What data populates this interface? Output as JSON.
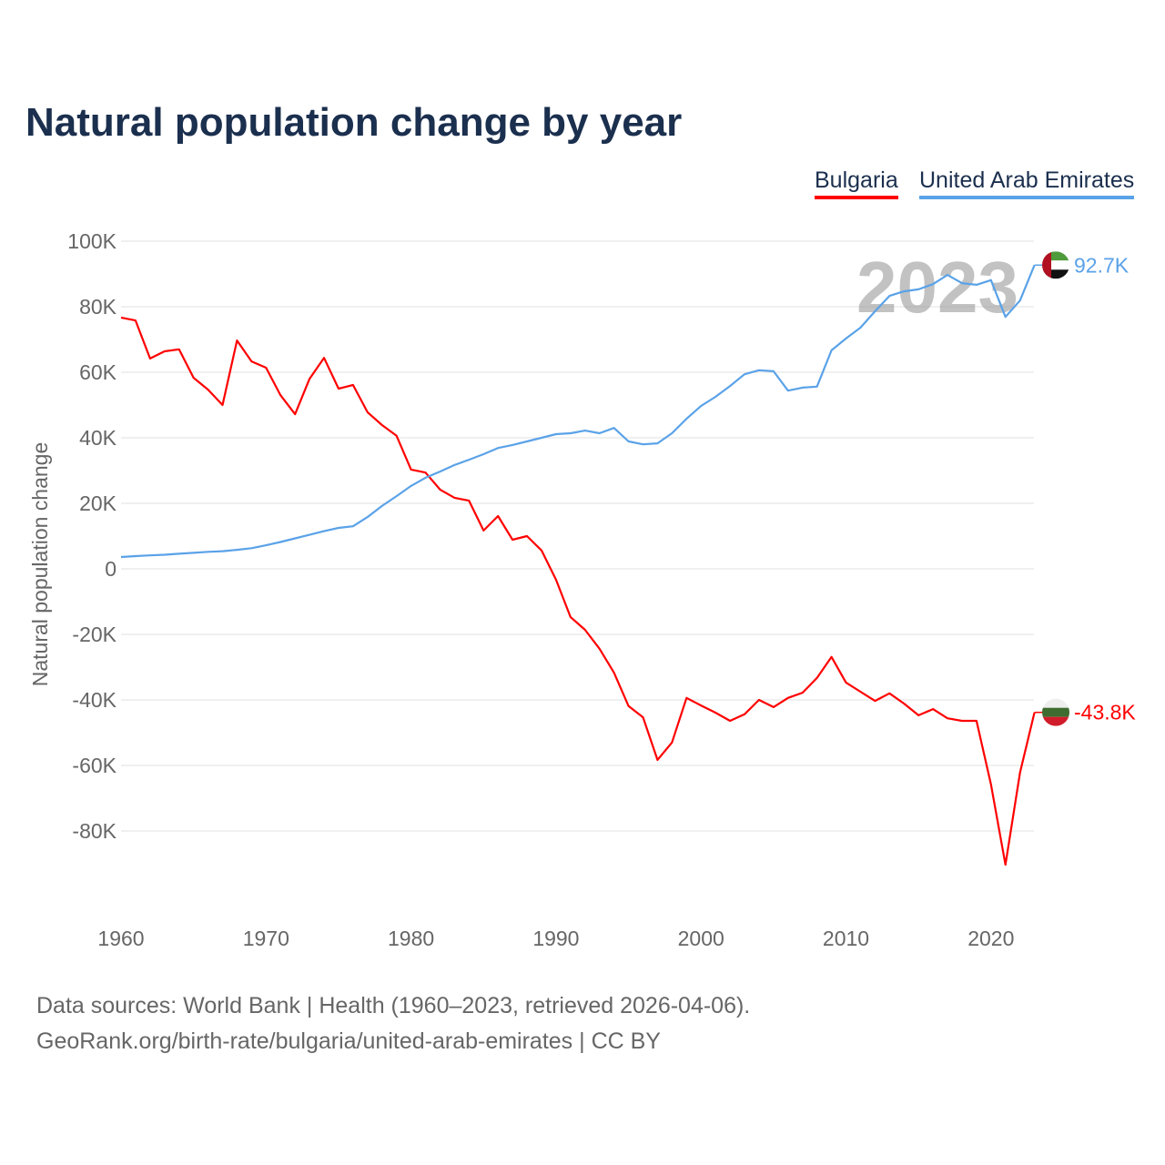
{
  "chart_data": {
    "type": "line",
    "title": "Natural population change by year",
    "xlabel": "",
    "ylabel": "Natural population change",
    "xlim": [
      1960,
      2023
    ],
    "ylim": [
      -100000,
      100000
    ],
    "x_ticks": [
      1960,
      1970,
      1980,
      1990,
      2000,
      2010,
      2020
    ],
    "x_tick_labels": [
      "1960",
      "1970",
      "1980",
      "1990",
      "2000",
      "2010",
      "2020"
    ],
    "y_ticks": [
      100000,
      80000,
      60000,
      40000,
      20000,
      0,
      -20000,
      -40000,
      -60000,
      -80000
    ],
    "y_tick_labels": [
      "100K",
      "80K",
      "60K",
      "40K",
      "20K",
      "0",
      "-20K",
      "-40K",
      "-60K",
      "-80K"
    ],
    "grid": true,
    "legend_position": "top-right",
    "current_year_label": "2023",
    "x": [
      1960,
      1961,
      1962,
      1963,
      1964,
      1965,
      1966,
      1967,
      1968,
      1969,
      1970,
      1971,
      1972,
      1973,
      1974,
      1975,
      1976,
      1977,
      1978,
      1979,
      1980,
      1981,
      1982,
      1983,
      1984,
      1985,
      1986,
      1987,
      1988,
      1989,
      1990,
      1991,
      1992,
      1993,
      1994,
      1995,
      1996,
      1997,
      1998,
      1999,
      2000,
      2001,
      2002,
      2003,
      2004,
      2005,
      2006,
      2007,
      2008,
      2009,
      2010,
      2011,
      2012,
      2013,
      2014,
      2015,
      2016,
      2017,
      2018,
      2019,
      2020,
      2021,
      2022,
      2023
    ],
    "series": [
      {
        "name": "Bulgaria",
        "color": "#ff0000",
        "end_label": "-43.8K",
        "values": [
          76700,
          75800,
          64200,
          66400,
          67000,
          58300,
          54700,
          50000,
          69700,
          63300,
          61400,
          53000,
          47200,
          58000,
          64400,
          55000,
          56100,
          47800,
          43900,
          40600,
          30300,
          29400,
          24200,
          21700,
          20800,
          11700,
          16100,
          8900,
          10000,
          5600,
          -3300,
          -14700,
          -18600,
          -24400,
          -31700,
          -41900,
          -45300,
          -58300,
          -53000,
          -39400,
          -41700,
          -43900,
          -46400,
          -44400,
          -40000,
          -42200,
          -39400,
          -37800,
          -33300,
          -26900,
          -34700,
          -37500,
          -40300,
          -38000,
          -41100,
          -44700,
          -42800,
          -45600,
          -46400,
          -46400,
          -65800,
          -90300,
          -62200,
          -43800
        ]
      },
      {
        "name": "United Arab Emirates",
        "color": "#5aa2e8",
        "end_label": "92.7K",
        "values": [
          3600,
          3900,
          4100,
          4300,
          4600,
          4900,
          5200,
          5400,
          5800,
          6300,
          7200,
          8200,
          9300,
          10400,
          11500,
          12500,
          13000,
          15800,
          19200,
          22200,
          25300,
          27800,
          29700,
          31700,
          33300,
          35000,
          36900,
          37800,
          38900,
          40000,
          41100,
          41400,
          42200,
          41400,
          43000,
          38900,
          38000,
          38300,
          41400,
          45800,
          49700,
          52500,
          55800,
          59400,
          60600,
          60300,
          54400,
          55300,
          55600,
          66700,
          70300,
          73600,
          78600,
          83300,
          84700,
          85300,
          86900,
          89700,
          87200,
          86700,
          88100,
          76900,
          81900,
          92700
        ]
      }
    ]
  },
  "footer": {
    "line1": "Data sources: World Bank | Health (1960–2023, retrieved 2026-04-06).",
    "line2": "GeoRank.org/birth-rate/bulgaria/united-arab-emirates | CC BY"
  }
}
